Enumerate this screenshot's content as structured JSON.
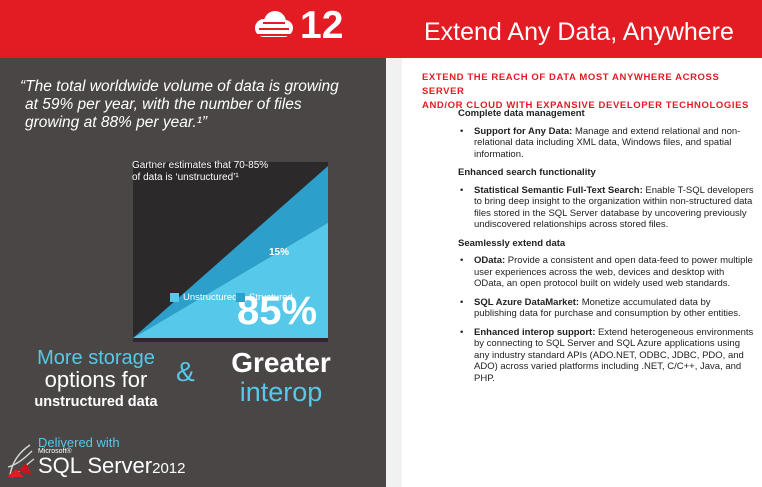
{
  "header": {
    "number": "12",
    "title": "Extend Any Data, Anywhere",
    "accent": "#e31b23"
  },
  "left": {
    "quote_lines": [
      "“The total worldwide volume of data is growing",
      "at 59% per year, with the number of files",
      "growing at 88% per year.¹”"
    ],
    "gartner_lines": [
      "Gartner estimates that 70-85%",
      "of data is ‘unstructured’¹"
    ],
    "more_lines": [
      "More storage",
      "options for",
      "unstructured data"
    ],
    "amp": "&",
    "greater_lines": [
      "Greater",
      "interop"
    ],
    "delivered": "Delivered with",
    "microsoft": "Microsoft®",
    "sql_server": "SQL Server",
    "sql_version": "2012"
  },
  "chart_data": {
    "type": "area",
    "categories": [
      "Unstructured",
      "Structured"
    ],
    "values": [
      85,
      15
    ],
    "data_labels": [
      "85%",
      "15%"
    ],
    "colors": [
      "#56c8e9",
      "#2d9fcb"
    ]
  },
  "right": {
    "heading_lines": [
      "EXTEND THE REACH OF DATA MOST ANYWHERE ACROSS SERVER",
      "AND/OR CLOUD WITH EXPANSIVE DEVELOPER TECHNOLOGIES"
    ],
    "sections": [
      {
        "title": "Complete data management",
        "bullets": [
          {
            "lead": "Support for Any Data:",
            "text": " Manage and extend relational and non-relational data including XML data, Windows files, and spatial information."
          }
        ]
      },
      {
        "title": "Enhanced search functionality",
        "bullets": [
          {
            "lead": "Statistical Semantic Full-Text Search:",
            "text": " Enable T-SQL developers to bring deep insight to the organization within non-structured data files stored in the SQL Server database by uncovering previously undiscovered relationships across stored files."
          }
        ]
      },
      {
        "title": "Seamlessly extend data",
        "bullets": [
          {
            "lead": "OData:",
            "text": " Provide a consistent and open data-feed to power multiple user experiences across the web, devices and desktop with OData, an open protocol built on widely used web standards."
          },
          {
            "lead": "SQL Azure DataMarket:",
            "text": " Monetize accumulated data by publishing data for purchase and consumption by other entities."
          },
          {
            "lead": "Enhanced interop support:",
            "text": " Extend heterogeneous environments by connecting to SQL Server and SQL Azure applications using any industry standard APIs (ADO.NET, ODBC, JDBC, PDO, and ADO) across varied platforms including .NET, C/C++, Java, and PHP."
          }
        ]
      }
    ]
  }
}
